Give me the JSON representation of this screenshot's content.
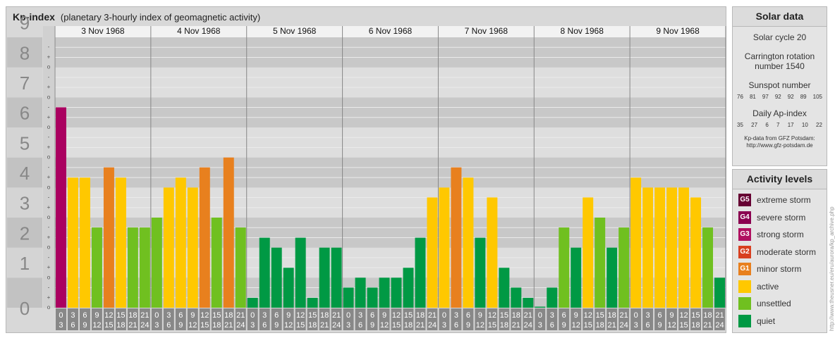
{
  "header": {
    "title": "Kp-index",
    "subtitle": "(planetary 3-hourly index of geomagnetic activity)"
  },
  "chart_data": {
    "type": "bar",
    "title": "Kp-index",
    "ylim": [
      0,
      9
    ],
    "y_ticks": [
      "0",
      "1",
      "2",
      "3",
      "4",
      "5",
      "6",
      "7",
      "8",
      "9"
    ],
    "minor_tick_marks": [
      "o",
      "+",
      "-"
    ],
    "days": [
      "3 Nov 1968",
      "4 Nov 1968",
      "5 Nov 1968",
      "6 Nov 1968",
      "7 Nov 1968",
      "8 Nov 1968",
      "9 Nov 1968"
    ],
    "hour_labels": [
      [
        "0",
        "3"
      ],
      [
        "3",
        "6"
      ],
      [
        "6",
        "9"
      ],
      [
        "9",
        "12"
      ],
      [
        "12",
        "15"
      ],
      [
        "15",
        "18"
      ],
      [
        "18",
        "21"
      ],
      [
        "21",
        "24"
      ]
    ],
    "values": [
      [
        6.67,
        4.33,
        4.33,
        2.67,
        4.67,
        4.33,
        2.67,
        2.67
      ],
      [
        3.0,
        4.0,
        4.33,
        4.0,
        4.67,
        3.0,
        5.0,
        2.67
      ],
      [
        0.33,
        2.33,
        2.0,
        1.33,
        2.33,
        0.33,
        2.0,
        2.0
      ],
      [
        0.67,
        1.0,
        0.67,
        1.0,
        1.0,
        1.33,
        2.33,
        3.67
      ],
      [
        4.0,
        4.67,
        4.33,
        2.33,
        3.67,
        1.33,
        0.67,
        0.33
      ],
      [
        0.0,
        0.67,
        2.67,
        2.0,
        3.67,
        3.0,
        2.0,
        2.67
      ],
      [
        4.33,
        4.0,
        4.0,
        4.0,
        4.0,
        3.67,
        2.67,
        1.0
      ]
    ],
    "level_colors": {
      "quiet": "#009944",
      "unsettled": "#70c020",
      "active": "#ffc800",
      "G1": "#e8801e",
      "G2": "#e06420",
      "G3": "#cc1446",
      "G4": "#aa0060",
      "G5": "#660033"
    }
  },
  "solar": {
    "title": "Solar data",
    "cycle": "Solar cycle 20",
    "carrington_1": "Carrington rotation",
    "carrington_2": "number 1540",
    "sunspot_label": "Sunspot number",
    "sunspots": [
      "76",
      "81",
      "97",
      "92",
      "92",
      "89",
      "105"
    ],
    "ap_label": "Daily Ap-index",
    "ap": [
      "35",
      "27",
      "6",
      "7",
      "17",
      "10",
      "22"
    ],
    "credit_1": "Kp-data from GFZ Potsdam:",
    "credit_2": "http://www.gfz-potsdam.de"
  },
  "activity": {
    "title": "Activity levels",
    "levels": [
      {
        "badge": "G5",
        "label": "extreme storm",
        "color": "#660033"
      },
      {
        "badge": "G4",
        "label": "severe storm",
        "color": "#8a0050"
      },
      {
        "badge": "G3",
        "label": "strong storm",
        "color": "#b01060"
      },
      {
        "badge": "G2",
        "label": "moderate storm",
        "color": "#d84020"
      },
      {
        "badge": "G1",
        "label": "minor storm",
        "color": "#e8801e"
      },
      {
        "badge": "",
        "label": "active",
        "color": "#ffc800"
      },
      {
        "badge": "",
        "label": "unsettled",
        "color": "#70c020"
      },
      {
        "badge": "",
        "label": "quiet",
        "color": "#009944"
      }
    ]
  },
  "watermark": "http://www.theusner.eu/eru/aurora/kp_archive.php"
}
